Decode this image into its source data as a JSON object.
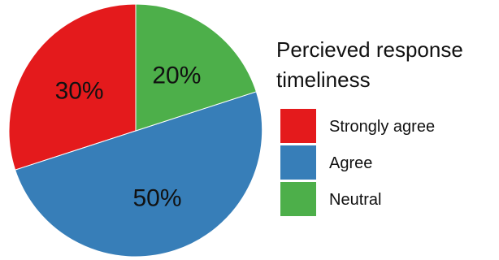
{
  "chart_data": {
    "type": "pie",
    "title": "Percieved response timeliness",
    "title_lines": [
      "Percieved response",
      "timeliness"
    ],
    "categories": [
      "Strongly agree",
      "Agree",
      "Neutral"
    ],
    "values": [
      30,
      50,
      20
    ],
    "labels": [
      "30%",
      "50%",
      "20%"
    ],
    "colors": [
      "#e41a1c",
      "#377eb8",
      "#4daf4a"
    ],
    "legend_position": "right",
    "start_angle": "top, counter-clockwise from Strongly agree"
  }
}
